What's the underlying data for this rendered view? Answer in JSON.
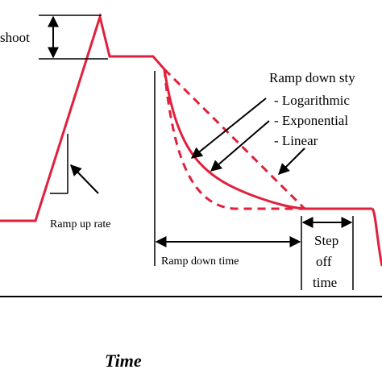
{
  "labels": {
    "overshoot": "shoot",
    "ramp_up_rate": "Ramp up rate",
    "ramp_down_styles_title": "Ramp down sty",
    "style_log": "- Logarithmic",
    "style_exp": "- Exponential",
    "style_lin": "- Linear",
    "ramp_down_time": "Ramp down time",
    "step_off_1": "Step",
    "step_off_2": "off",
    "step_off_3": "time",
    "x_axis": "Time"
  },
  "colors": {
    "curve": "#e0203c",
    "ink": "#000000",
    "background": "#ffffff"
  },
  "legend": {
    "solid_curve_style": "solid",
    "dashed_curve_style": "dashed"
  }
}
